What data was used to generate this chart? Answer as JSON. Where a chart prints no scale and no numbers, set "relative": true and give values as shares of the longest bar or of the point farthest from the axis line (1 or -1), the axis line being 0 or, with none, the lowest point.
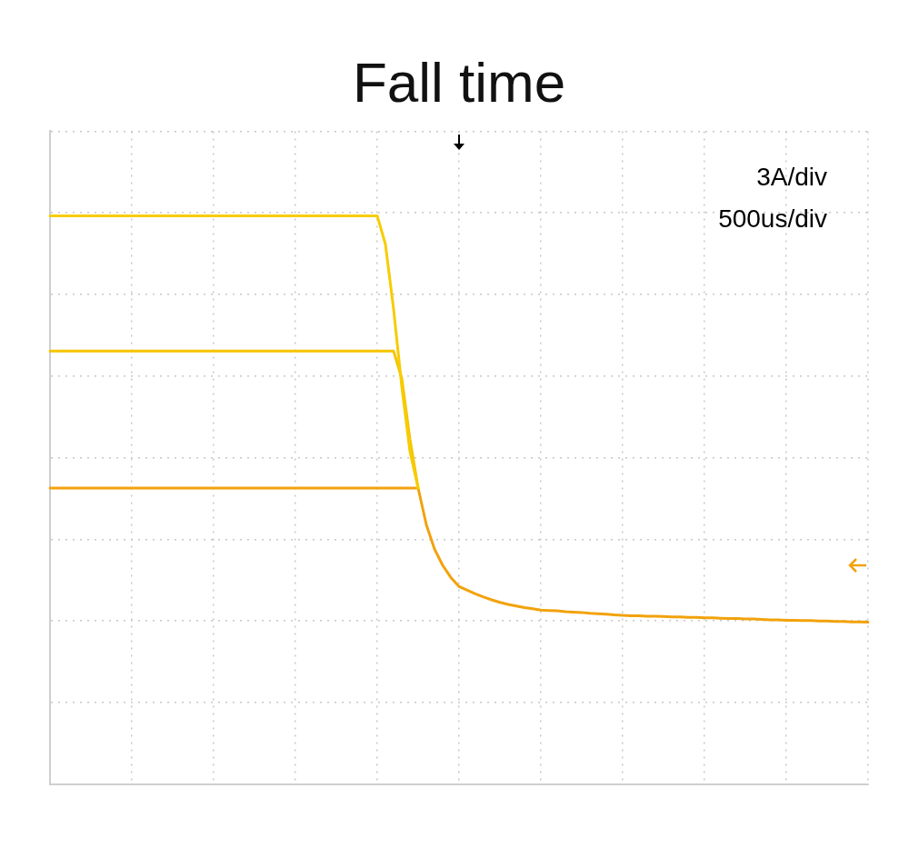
{
  "chart_data": {
    "type": "line",
    "title": "Fall time",
    "relative": true,
    "grid": true,
    "legend": false,
    "marker": "none",
    "line_style": "solid",
    "annotations": [
      "3A/div",
      "500us/div"
    ],
    "categories": [
      null,
      null,
      null,
      null,
      null,
      null,
      null,
      null,
      null,
      null,
      null,
      null,
      null,
      null,
      null,
      null,
      null,
      null,
      null,
      null,
      null,
      null,
      null,
      null,
      null,
      null,
      null,
      null,
      null,
      null,
      null,
      null,
      null,
      null,
      null,
      null,
      null,
      null,
      null,
      null,
      null,
      null,
      null,
      null,
      null,
      null,
      null,
      null,
      null,
      null,
      null,
      null,
      null,
      null,
      null,
      null,
      null,
      null,
      null,
      null,
      null,
      null,
      null,
      null,
      null,
      null,
      null,
      null,
      null,
      null,
      null,
      null,
      null,
      null,
      null,
      null,
      null,
      null,
      null,
      null,
      null,
      null,
      null,
      null,
      null,
      null,
      null,
      null,
      null,
      null,
      null,
      null,
      null,
      null,
      null,
      null,
      null,
      null,
      null,
      null,
      null
    ],
    "series": [
      {
        "color": "#f7cc00",
        "values": [
          1.0,
          1.0,
          1.0,
          1.0,
          1.0,
          1.0,
          1.0,
          1.0,
          1.0,
          1.0,
          1.0,
          1.0,
          1.0,
          1.0,
          1.0,
          1.0,
          1.0,
          1.0,
          1.0,
          1.0,
          1.0,
          1.0,
          1.0,
          1.0,
          1.0,
          1.0,
          1.0,
          1.0,
          1.0,
          1.0,
          1.0,
          1.0,
          1.0,
          1.0,
          1.0,
          1.0,
          1.0,
          1.0,
          1.0,
          1.0,
          1.0,
          0.93,
          0.77,
          0.58,
          0.42,
          0.33,
          null,
          null,
          null,
          null,
          null,
          null,
          null,
          null,
          null,
          null,
          null,
          null,
          null,
          null,
          null,
          null,
          null,
          null,
          null,
          null,
          null,
          null,
          null,
          null,
          null,
          null,
          null,
          null,
          null,
          null,
          null,
          null,
          null,
          null,
          null,
          null,
          null,
          null,
          null,
          null,
          null,
          null,
          null,
          null,
          null,
          null,
          null,
          null,
          null,
          null,
          null,
          null,
          null,
          null,
          null
        ]
      },
      {
        "color": "#f5c400",
        "values": [
          0.667,
          0.667,
          0.667,
          0.667,
          0.667,
          0.667,
          0.667,
          0.667,
          0.667,
          0.667,
          0.667,
          0.667,
          0.667,
          0.667,
          0.667,
          0.667,
          0.667,
          0.667,
          0.667,
          0.667,
          0.667,
          0.667,
          0.667,
          0.667,
          0.667,
          0.667,
          0.667,
          0.667,
          0.667,
          0.667,
          0.667,
          0.667,
          0.667,
          0.667,
          0.667,
          0.667,
          0.667,
          0.667,
          0.667,
          0.667,
          0.667,
          0.667,
          0.667,
          0.6,
          0.45,
          0.33,
          null,
          null,
          null,
          null,
          null,
          null,
          null,
          null,
          null,
          null,
          null,
          null,
          null,
          null,
          null,
          null,
          null,
          null,
          null,
          null,
          null,
          null,
          null,
          null,
          null,
          null,
          null,
          null,
          null,
          null,
          null,
          null,
          null,
          null,
          null,
          null,
          null,
          null,
          null,
          null,
          null,
          null,
          null,
          null,
          null,
          null,
          null,
          null,
          null,
          null,
          null,
          null,
          null,
          null,
          null
        ]
      },
      {
        "color": "#f2a20c",
        "values": [
          0.33,
          0.33,
          0.33,
          0.33,
          0.33,
          0.33,
          0.33,
          0.33,
          0.33,
          0.33,
          0.33,
          0.33,
          0.33,
          0.33,
          0.33,
          0.33,
          0.33,
          0.33,
          0.33,
          0.33,
          0.33,
          0.33,
          0.33,
          0.33,
          0.33,
          0.33,
          0.33,
          0.33,
          0.33,
          0.33,
          0.33,
          0.33,
          0.33,
          0.33,
          0.33,
          0.33,
          0.33,
          0.33,
          0.33,
          0.33,
          0.33,
          0.33,
          0.33,
          0.33,
          0.33,
          0.33,
          0.24,
          0.18,
          0.14,
          0.11,
          0.088,
          0.079,
          0.07,
          0.062,
          0.055,
          0.049,
          0.044,
          0.04,
          0.036,
          0.033,
          0.03,
          0.029,
          0.028,
          0.026,
          0.025,
          0.024,
          0.022,
          0.021,
          0.02,
          0.018,
          0.017,
          0.016,
          0.016,
          0.015,
          0.015,
          0.014,
          0.013,
          0.013,
          0.012,
          0.012,
          0.011,
          0.011,
          0.01,
          0.009,
          0.009,
          0.008,
          0.008,
          0.007,
          0.006,
          0.006,
          0.005,
          0.005,
          0.004,
          0.004,
          0.003,
          0.003,
          0.002,
          0.002,
          0.001,
          0.001,
          0
        ]
      }
    ]
  }
}
